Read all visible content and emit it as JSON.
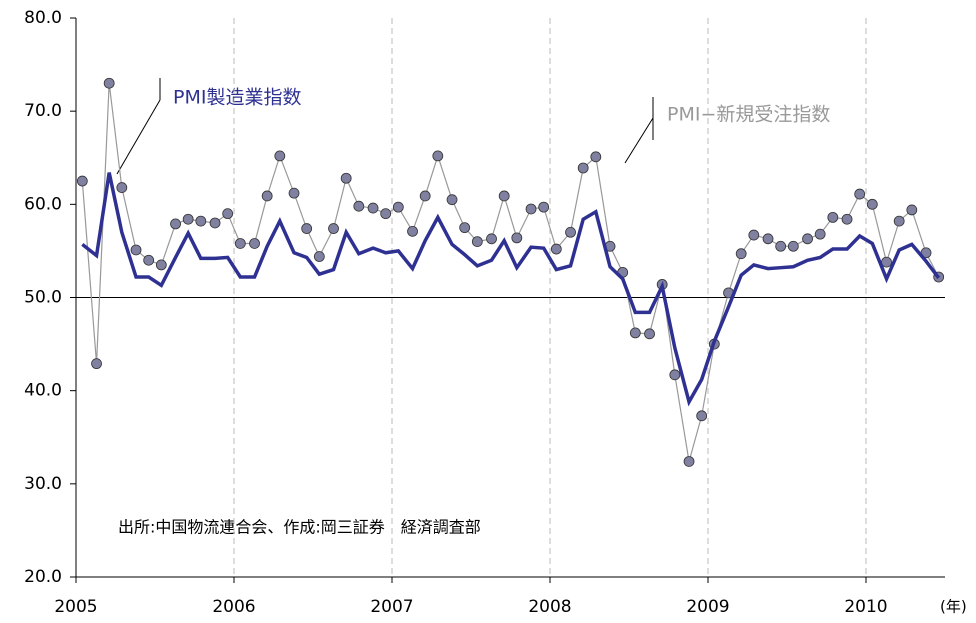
{
  "chart_data": {
    "type": "line",
    "x": [
      2005.04,
      2005.13,
      2005.21,
      2005.29,
      2005.38,
      2005.46,
      2005.54,
      2005.63,
      2005.71,
      2005.79,
      2005.88,
      2005.96,
      2006.04,
      2006.13,
      2006.21,
      2006.29,
      2006.38,
      2006.46,
      2006.54,
      2006.63,
      2006.71,
      2006.79,
      2006.88,
      2006.96,
      2007.04,
      2007.13,
      2007.21,
      2007.29,
      2007.38,
      2007.46,
      2007.54,
      2007.63,
      2007.71,
      2007.79,
      2007.88,
      2007.96,
      2008.04,
      2008.13,
      2008.21,
      2008.29,
      2008.38,
      2008.46,
      2008.54,
      2008.63,
      2008.71,
      2008.79,
      2008.88,
      2008.96,
      2009.04,
      2009.13,
      2009.21,
      2009.29,
      2009.38,
      2009.46,
      2009.54,
      2009.63,
      2009.71,
      2009.79,
      2009.88,
      2009.96,
      2010.04,
      2010.13,
      2010.21,
      2010.29,
      2010.38,
      2010.46
    ],
    "series": [
      {
        "name": "PMI製造業指数",
        "color": "#2e3192",
        "markers": false,
        "values": [
          55.7,
          54.5,
          63.4,
          57.0,
          52.2,
          52.2,
          51.3,
          54.3,
          56.9,
          54.2,
          54.2,
          54.3,
          52.2,
          52.2,
          55.5,
          58.2,
          54.8,
          54.3,
          52.5,
          53.0,
          57.0,
          54.7,
          55.3,
          54.8,
          55.0,
          53.1,
          56.1,
          58.6,
          55.7,
          54.6,
          53.4,
          54.0,
          56.1,
          53.2,
          55.4,
          55.3,
          53.0,
          53.4,
          58.4,
          59.2,
          53.3,
          52.0,
          48.4,
          48.4,
          51.2,
          44.6,
          38.8,
          41.2,
          45.3,
          49.0,
          52.4,
          53.5,
          53.1,
          53.2,
          53.3,
          54.0,
          54.3,
          55.2,
          55.2,
          56.6,
          55.8,
          52.0,
          55.1,
          55.7,
          53.9,
          52.1
        ]
      },
      {
        "name": "PMI−新規受注指数",
        "color": "#999999",
        "markers": true,
        "values": [
          62.5,
          42.9,
          73.0,
          61.8,
          55.1,
          54.0,
          53.5,
          57.9,
          58.4,
          58.2,
          58.0,
          59.0,
          55.8,
          55.8,
          60.9,
          65.2,
          61.2,
          57.4,
          54.4,
          57.4,
          62.8,
          59.8,
          59.6,
          59.0,
          59.7,
          57.1,
          60.9,
          65.2,
          60.5,
          57.5,
          56.0,
          56.3,
          60.9,
          56.4,
          59.5,
          59.7,
          55.2,
          57.0,
          63.9,
          65.1,
          55.5,
          52.7,
          46.2,
          46.1,
          51.4,
          41.7,
          32.4,
          37.3,
          45.0,
          50.5,
          54.7,
          56.7,
          56.3,
          55.5,
          55.5,
          56.3,
          56.8,
          58.6,
          58.4,
          61.1,
          60.0,
          53.8,
          58.2,
          59.4,
          54.8,
          52.2
        ]
      }
    ],
    "xlim": [
      2005,
      2010.5
    ],
    "xticks": [
      2005,
      2006,
      2007,
      2008,
      2009,
      2010
    ],
    "ylim": [
      20,
      80
    ],
    "yticks": [
      {
        "value": 20,
        "label": "20.0"
      },
      {
        "value": 30,
        "label": "30.0"
      },
      {
        "value": 40,
        "label": "40.0"
      },
      {
        "value": 50,
        "label": "50.0"
      },
      {
        "value": 60,
        "label": "60.0"
      },
      {
        "value": 70,
        "label": "70.0"
      },
      {
        "value": 80,
        "label": "80.0"
      }
    ],
    "hline": 50,
    "xgrid": true,
    "x_unit": "(年)",
    "annotation": "出所:中国物流連合会、作成:岡三証券　経済調査部"
  }
}
